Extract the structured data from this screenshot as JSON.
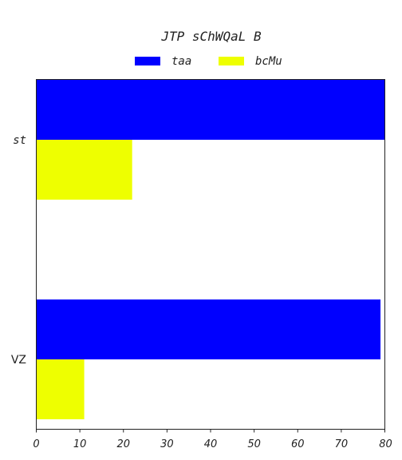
{
  "chart_data": {
    "type": "bar",
    "orientation": "horizontal",
    "title": "JTP sChWQaL B",
    "categories": [
      "st",
      "VZ"
    ],
    "series": [
      {
        "name": "taa",
        "color": "#0000ff",
        "values": [
          80,
          79
        ]
      },
      {
        "name": "bcMu",
        "color": "#eeff00",
        "values": [
          22,
          11
        ]
      }
    ],
    "xlabel": "",
    "ylabel": "",
    "xlim": [
      0,
      80
    ],
    "xticks": [
      "0",
      "10",
      "20",
      "30",
      "40",
      "50",
      "60",
      "70",
      "80"
    ],
    "grid": false,
    "legend_position": "top-center"
  }
}
